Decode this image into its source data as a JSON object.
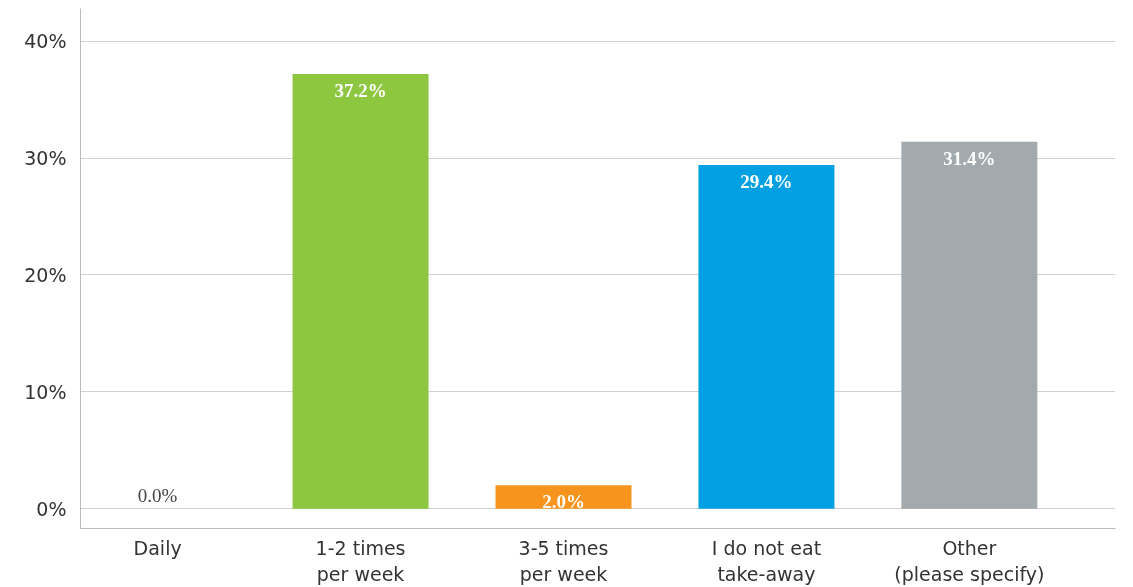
{
  "chart_data": {
    "type": "bar",
    "categories": [
      "Daily",
      "1-2 times\nper week",
      "3-5 times\nper week",
      "I do not eat\ntake-away",
      "Other\n(please specify)"
    ],
    "values": [
      0.0,
      37.2,
      2.0,
      29.4,
      31.4
    ],
    "colors": [
      "#8dc63f",
      "#8dc63f",
      "#f7941d",
      "#00a0e3",
      "#a3aaad"
    ],
    "value_labels": [
      "0.0%",
      "37.2%",
      "2.0%",
      "29.4%",
      "31.4%"
    ],
    "ylim": [
      -1.7,
      42.8
    ],
    "yticks": [
      {
        "value": 0,
        "label": "0%"
      },
      {
        "value": 10,
        "label": "10%"
      },
      {
        "value": 20,
        "label": "20%"
      },
      {
        "value": 30,
        "label": "30%"
      },
      {
        "value": 40,
        "label": "40%"
      }
    ],
    "grid": "y"
  }
}
